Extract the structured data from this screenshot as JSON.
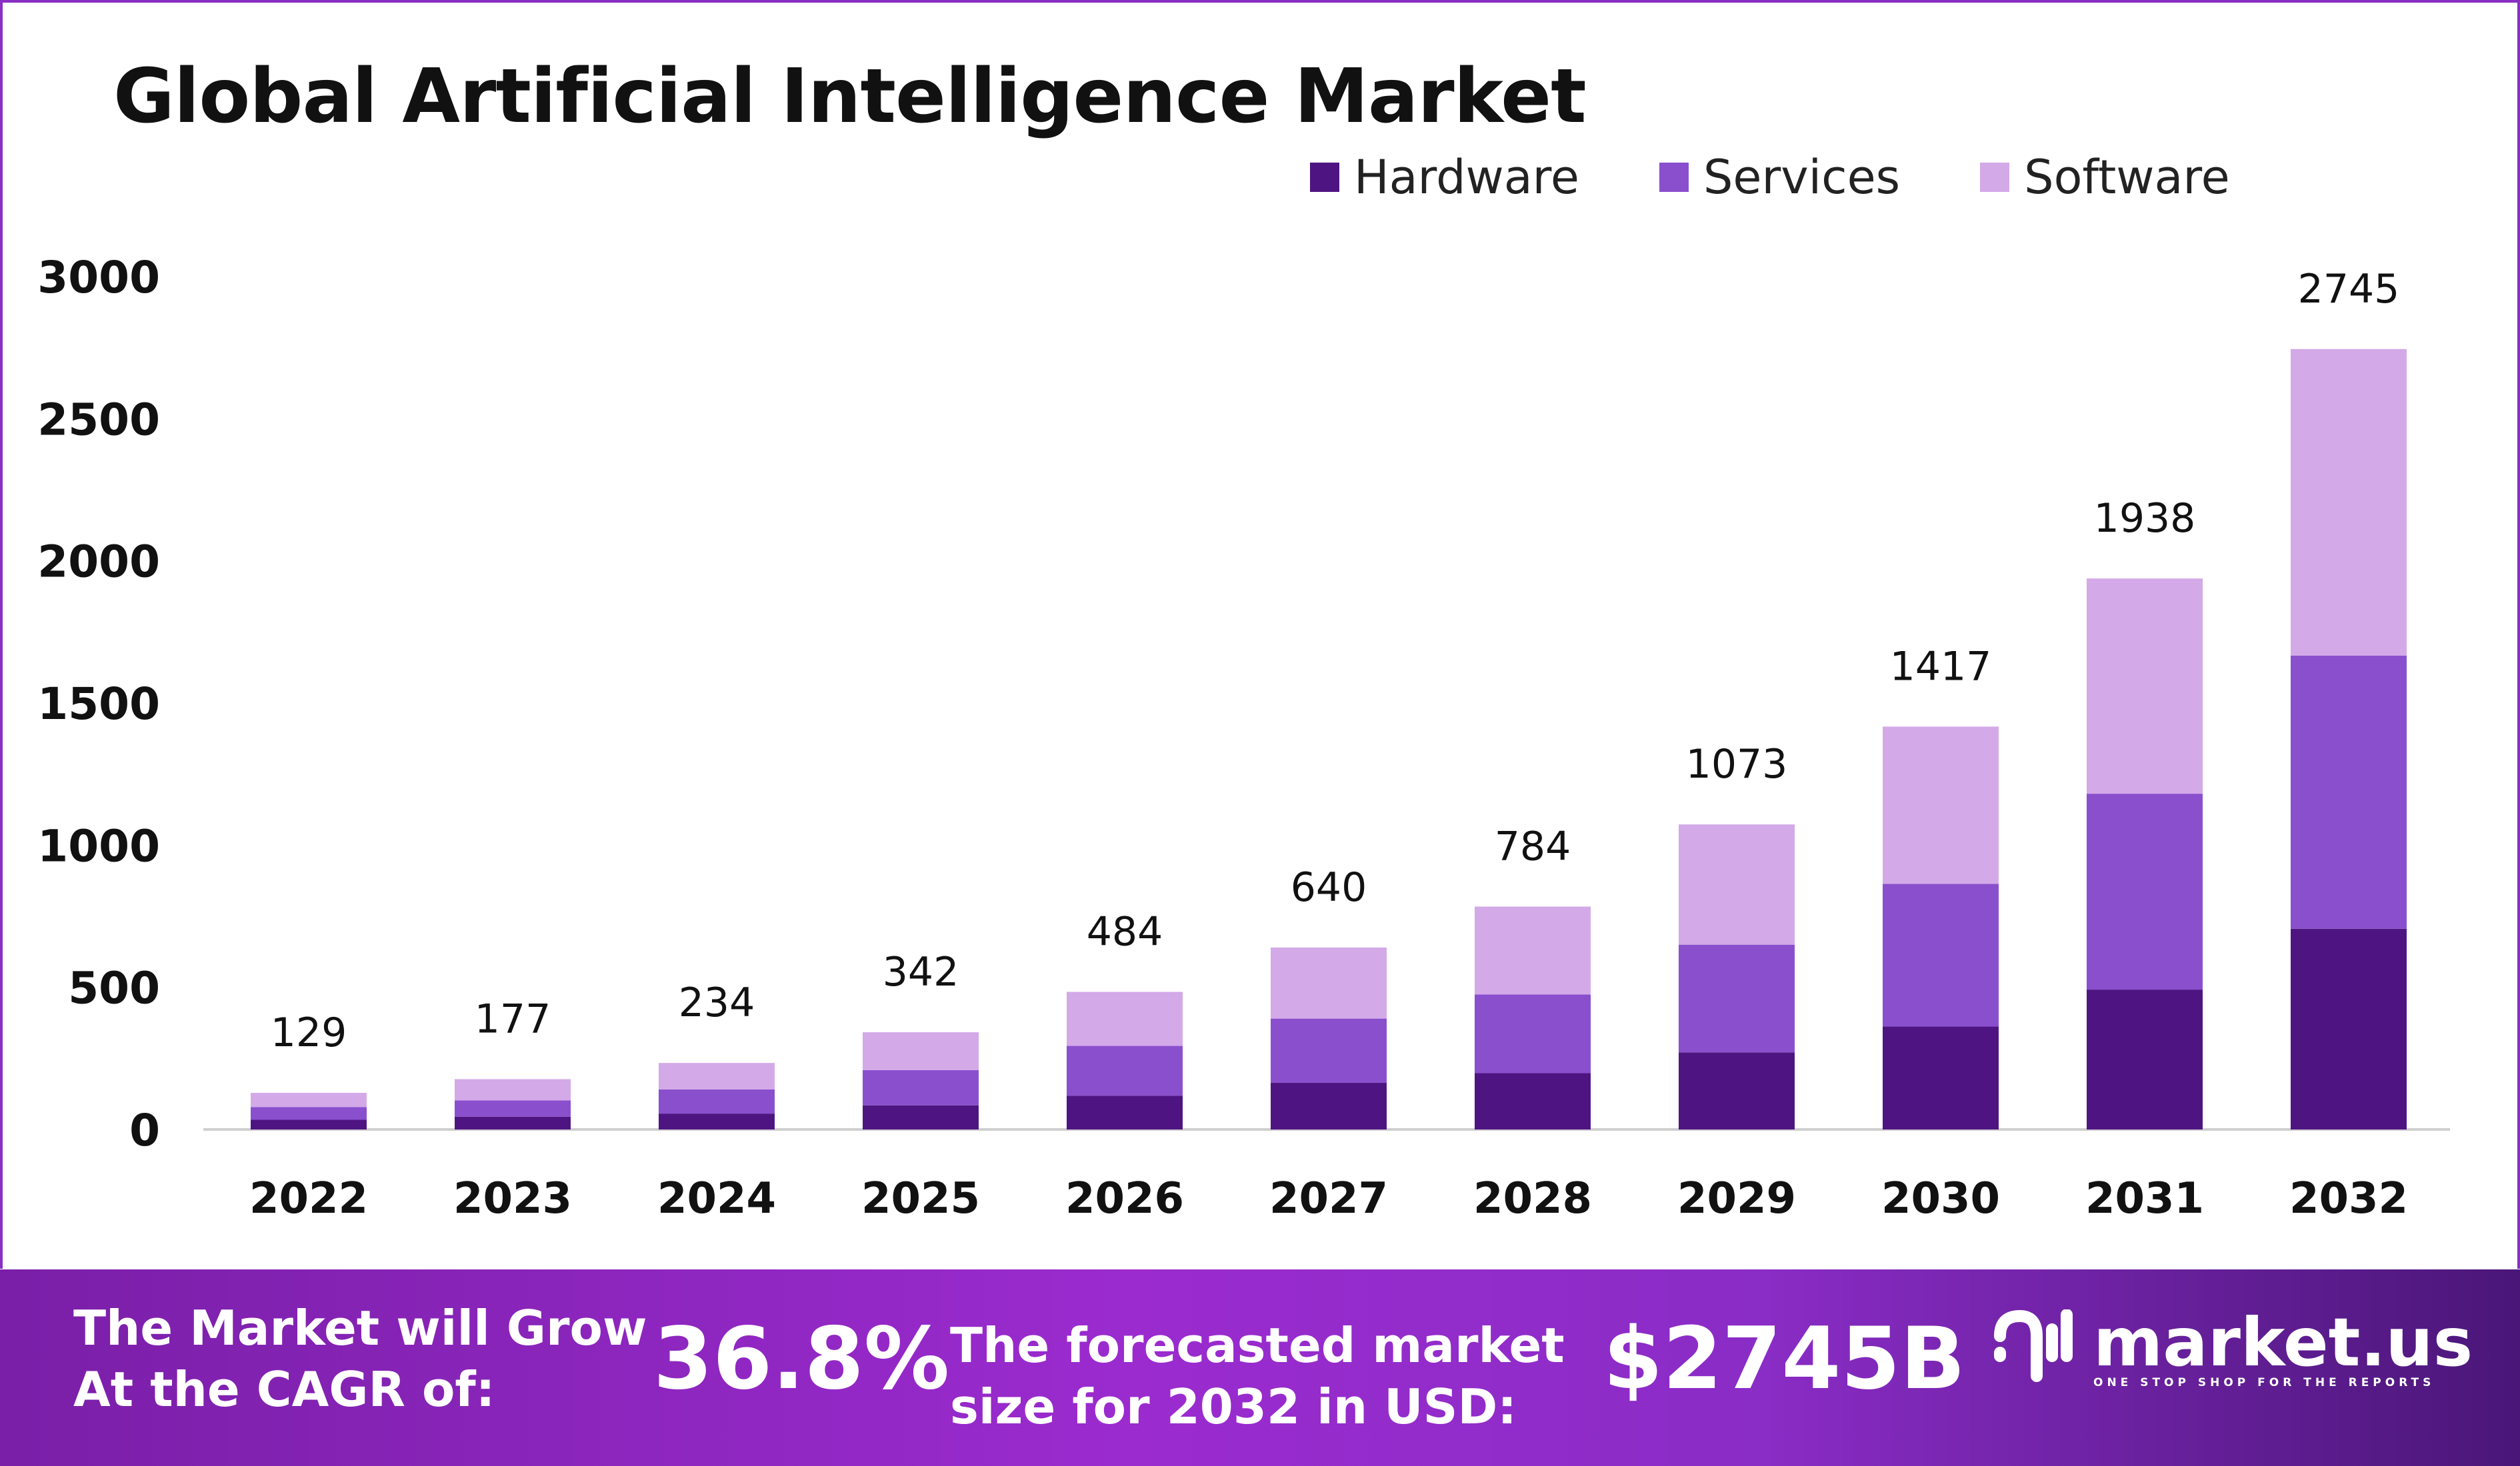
{
  "chart_data": {
    "type": "bar",
    "stacked": true,
    "title": "Global Artificial Intelligence Market",
    "xlabel": "",
    "ylabel": "",
    "ylim": [
      0,
      3000
    ],
    "yticks": [
      0,
      500,
      1000,
      1500,
      2000,
      2500,
      3000
    ],
    "grid": false,
    "legend_position": "top-right",
    "categories": [
      "2022",
      "2023",
      "2024",
      "2025",
      "2026",
      "2027",
      "2028",
      "2029",
      "2030",
      "2031",
      "2032"
    ],
    "totals": [
      129,
      177,
      234,
      342,
      484,
      640,
      784,
      1073,
      1417,
      1938,
      2745
    ],
    "series": [
      {
        "name": "Hardware",
        "color": "#4e1582",
        "values": [
          34,
          45,
          56,
          85,
          119,
          164,
          198,
          271,
          362,
          492,
          706
        ]
      },
      {
        "name": "Services",
        "color": "#8a4fcd",
        "values": [
          45,
          57,
          85,
          124,
          175,
          226,
          277,
          379,
          502,
          689,
          961
        ]
      },
      {
        "name": "Software",
        "color": "#d3a9e8",
        "values": [
          50,
          75,
          93,
          133,
          190,
          250,
          309,
          423,
          553,
          757,
          1078
        ]
      }
    ]
  },
  "banner": {
    "cagr_label_1": "The Market will Grow",
    "cagr_label_2": "At the CAGR of:",
    "cagr_value": "36.8%",
    "forecast_label_1": "The forecasted market",
    "forecast_label_2": "size for 2032 in USD:",
    "forecast_value": "$2745B",
    "logo_text": "market.us",
    "logo_tagline": "ONE STOP SHOP FOR THE REPORTS"
  }
}
